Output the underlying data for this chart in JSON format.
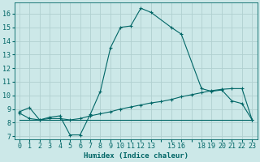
{
  "xlabel": "Humidex (Indice chaleur)",
  "background_color": "#cce8e8",
  "grid_color": "#b0d0d0",
  "line_color": "#006666",
  "xlim": [
    -0.5,
    23.5
  ],
  "ylim": [
    6.8,
    16.8
  ],
  "yticks": [
    7,
    8,
    9,
    10,
    11,
    12,
    13,
    14,
    15,
    16
  ],
  "xticks": [
    0,
    1,
    2,
    3,
    4,
    5,
    6,
    7,
    8,
    9,
    10,
    11,
    12,
    13,
    14,
    15,
    16,
    17,
    18,
    19,
    20,
    21,
    22,
    23
  ],
  "xtick_labels": [
    "0",
    "1",
    "2",
    "3",
    "4",
    "5",
    "6",
    "7",
    "8",
    "9",
    "10",
    "11",
    "12",
    "13",
    "",
    "15",
    "16",
    "",
    "18",
    "19",
    "20",
    "21",
    "22",
    "23"
  ],
  "line1_x": [
    0,
    1,
    2,
    3,
    4,
    5,
    6,
    7,
    8,
    9,
    10,
    11,
    12,
    13,
    15,
    16,
    18,
    19,
    20,
    21,
    22,
    23
  ],
  "line1_y": [
    8.8,
    9.1,
    8.2,
    8.4,
    8.5,
    7.1,
    7.1,
    8.6,
    10.3,
    13.5,
    15.0,
    15.1,
    16.4,
    16.1,
    15.0,
    14.5,
    10.5,
    10.3,
    10.4,
    9.6,
    9.4,
    8.2
  ],
  "line2_x": [
    0,
    1,
    2,
    3,
    4,
    5,
    6,
    7,
    8,
    9,
    10,
    11,
    12,
    13,
    14,
    15,
    16,
    17,
    18,
    19,
    20,
    21,
    22,
    23
  ],
  "line2_y": [
    8.7,
    8.3,
    8.2,
    8.3,
    8.3,
    8.2,
    8.3,
    8.5,
    8.65,
    8.8,
    9.0,
    9.15,
    9.3,
    9.45,
    9.55,
    9.7,
    9.9,
    10.05,
    10.2,
    10.35,
    10.45,
    10.5,
    10.5,
    8.2
  ],
  "line3_x": [
    0,
    13,
    23
  ],
  "line3_y": [
    8.2,
    8.2,
    8.2
  ],
  "font_size": 6.5,
  "tick_font_size": 6
}
